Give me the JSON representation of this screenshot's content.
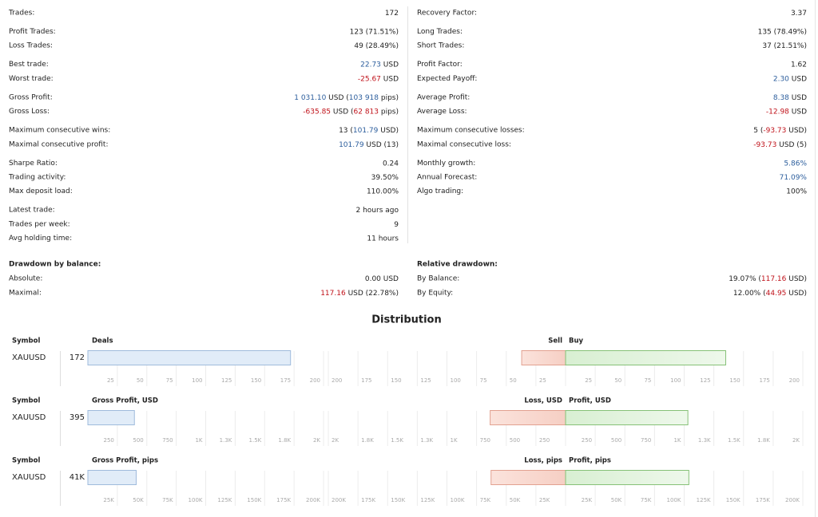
{
  "stats": {
    "left": [
      [
        {
          "label": "Trades:",
          "value": [
            "172"
          ]
        }
      ],
      [
        {
          "label": "Profit Trades:",
          "value": [
            "123 (71.51%)"
          ]
        },
        {
          "label": "Loss Trades:",
          "value": [
            "49 (28.49%)"
          ]
        }
      ],
      [
        {
          "label": "Best trade:",
          "value": [
            {
              "text": "22.73",
              "tone": "pos"
            },
            " USD"
          ]
        },
        {
          "label": "Worst trade:",
          "value": [
            {
              "text": "-25.67",
              "tone": "neg"
            },
            " USD"
          ]
        }
      ],
      [
        {
          "label": "Gross Profit:",
          "value": [
            {
              "text": "1 031.10",
              "tone": "pos"
            },
            " USD (",
            {
              "text": "103 918",
              "tone": "pos"
            },
            " pips)"
          ]
        },
        {
          "label": "Gross Loss:",
          "value": [
            {
              "text": "-635.85",
              "tone": "neg"
            },
            " USD (",
            {
              "text": "62 813",
              "tone": "neg"
            },
            " pips)"
          ]
        }
      ],
      [
        {
          "label": "Maximum consecutive wins:",
          "value": [
            "13 (",
            {
              "text": "101.79",
              "tone": "pos"
            },
            " USD)"
          ]
        },
        {
          "label": "Maximal consecutive profit:",
          "value": [
            {
              "text": "101.79",
              "tone": "pos"
            },
            " USD (13)"
          ]
        }
      ],
      [
        {
          "label": "Sharpe Ratio:",
          "value": [
            "0.24"
          ]
        },
        {
          "label": "Trading activity:",
          "value": [
            "39.50%"
          ]
        },
        {
          "label": "Max deposit load:",
          "value": [
            "110.00%"
          ]
        }
      ],
      [
        {
          "label": "Latest trade:",
          "value": [
            "2 hours ago"
          ]
        },
        {
          "label": "Trades per week:",
          "value": [
            "9"
          ]
        },
        {
          "label": "Avg holding time:",
          "value": [
            "11 hours"
          ]
        }
      ]
    ],
    "right": [
      [
        {
          "label": "Recovery Factor:",
          "value": [
            "3.37"
          ]
        }
      ],
      [
        {
          "label": "Long Trades:",
          "value": [
            "135 (78.49%)"
          ]
        },
        {
          "label": "Short Trades:",
          "value": [
            "37 (21.51%)"
          ]
        }
      ],
      [
        {
          "label": "Profit Factor:",
          "value": [
            "1.62"
          ]
        },
        {
          "label": "Expected Payoff:",
          "value": [
            {
              "text": "2.30",
              "tone": "pos"
            },
            " USD"
          ]
        }
      ],
      [
        {
          "label": "Average Profit:",
          "value": [
            {
              "text": "8.38",
              "tone": "pos"
            },
            " USD"
          ]
        },
        {
          "label": "Average Loss:",
          "value": [
            {
              "text": "-12.98",
              "tone": "neg"
            },
            " USD"
          ]
        }
      ],
      [
        {
          "label": "Maximum consecutive losses:",
          "value": [
            "5 (",
            {
              "text": "-93.73",
              "tone": "neg"
            },
            " USD)"
          ]
        },
        {
          "label": "Maximal consecutive loss:",
          "value": [
            {
              "text": "-93.73",
              "tone": "neg"
            },
            " USD (5)"
          ]
        }
      ],
      [
        {
          "label": "Monthly growth:",
          "value": [
            {
              "text": "5.86%",
              "tone": "pos"
            }
          ]
        },
        {
          "label": "Annual Forecast:",
          "value": [
            {
              "text": "71.09%",
              "tone": "pos"
            }
          ]
        },
        {
          "label": "Algo trading:",
          "value": [
            "100%"
          ]
        }
      ]
    ]
  },
  "drawdown": {
    "left": {
      "title": "Drawdown by balance:",
      "rows": [
        {
          "label": "Absolute:",
          "value": [
            "0.00 USD"
          ]
        },
        {
          "label": "Maximal:",
          "value": [
            {
              "text": "117.16",
              "tone": "neg"
            },
            " USD (22.78%)"
          ]
        }
      ]
    },
    "right": {
      "title": "Relative drawdown:",
      "rows": [
        {
          "label": "By Balance:",
          "value": [
            "19.07% (",
            {
              "text": "117.16",
              "tone": "neg"
            },
            " USD)"
          ]
        },
        {
          "label": "By Equity:",
          "value": [
            "12.00% (",
            {
              "text": "44.95",
              "tone": "neg"
            },
            " USD)"
          ]
        }
      ]
    }
  },
  "distribution": {
    "title": "Distribution",
    "rows": [
      {
        "symbol_header": "Symbol",
        "symbol": "XAUUSD",
        "left": {
          "title": "Deals",
          "value": 172,
          "xlim": [
            0,
            200
          ],
          "xticks": [
            25,
            50,
            75,
            100,
            125,
            150,
            175,
            200
          ]
        },
        "right": {
          "left_title": "Sell",
          "right_title": "Buy",
          "left_value": 37,
          "right_value": 135,
          "xlim": [
            0,
            200
          ],
          "xticks": [
            25,
            50,
            75,
            100,
            125,
            150,
            175,
            200
          ]
        }
      },
      {
        "symbol_header": "Symbol",
        "symbol": "XAUUSD",
        "left": {
          "title": "Gross Profit, USD",
          "value": 395,
          "xlim": [
            0,
            2000
          ],
          "xticks": [
            250,
            500,
            750,
            {
              "value": 1000,
              "label": "1K"
            },
            {
              "value": 1250,
              "label": "1.3K"
            },
            {
              "value": 1500,
              "label": "1.5K"
            },
            {
              "value": 1750,
              "label": "1.8K"
            },
            {
              "value": 2000,
              "label": "2K"
            }
          ]
        },
        "right": {
          "left_title": "Loss, USD",
          "right_title": "Profit, USD",
          "left_value": 635.85,
          "right_value": 1031.1,
          "xlim": [
            0,
            2000
          ],
          "xticks": [
            250,
            500,
            750,
            {
              "value": 1000,
              "label": "1K"
            },
            {
              "value": 1250,
              "label": "1.3K"
            },
            {
              "value": 1500,
              "label": "1.5K"
            },
            {
              "value": 1750,
              "label": "1.8K"
            },
            {
              "value": 2000,
              "label": "2K"
            }
          ]
        }
      },
      {
        "symbol_header": "Symbol",
        "symbol": "XAUUSD",
        "left": {
          "title": "Gross Profit, pips",
          "value": 41000,
          "value_label": "41K",
          "xlim": [
            0,
            200000
          ],
          "xticks": [
            {
              "value": 25000,
              "label": "25K"
            },
            {
              "value": 50000,
              "label": "50K"
            },
            {
              "value": 75000,
              "label": "75K"
            },
            {
              "value": 100000,
              "label": "100K"
            },
            {
              "value": 125000,
              "label": "125K"
            },
            {
              "value": 150000,
              "label": "150K"
            },
            {
              "value": 175000,
              "label": "175K"
            },
            {
              "value": 200000,
              "label": "200K"
            }
          ]
        },
        "right": {
          "left_title": "Loss, pips",
          "right_title": "Profit, pips",
          "left_value": 62813,
          "right_value": 103918,
          "xlim": [
            0,
            200000
          ],
          "xticks": [
            {
              "value": 25000,
              "label": "25K"
            },
            {
              "value": 50000,
              "label": "50K"
            },
            {
              "value": 75000,
              "label": "75K"
            },
            {
              "value": 100000,
              "label": "100K"
            },
            {
              "value": 125000,
              "label": "125K"
            },
            {
              "value": 150000,
              "label": "150K"
            },
            {
              "value": 175000,
              "label": "175K"
            },
            {
              "value": 200000,
              "label": "200K"
            }
          ]
        }
      }
    ]
  }
}
